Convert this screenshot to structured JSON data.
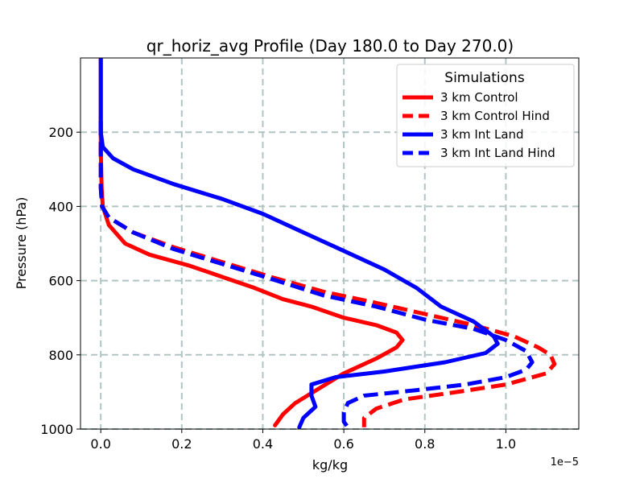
{
  "chart_data": {
    "type": "line",
    "title": "qr_horiz_avg Profile (Day 180.0 to Day 270.0)",
    "xlabel": "kg/kg",
    "ylabel": "Pressure (hPa)",
    "x_offset_text": "1e−5",
    "xlim": [
      -0.05,
      1.18
    ],
    "ylim": [
      1000,
      0
    ],
    "x_ticks": [
      0.0,
      0.2,
      0.4,
      0.6,
      0.8,
      1.0
    ],
    "x_tick_labels": [
      "0.0",
      "0.2",
      "0.4",
      "0.6",
      "0.8",
      "1.0"
    ],
    "y_ticks": [
      200,
      400,
      600,
      800,
      1000
    ],
    "y_tick_labels": [
      "200",
      "400",
      "600",
      "800",
      "1000"
    ],
    "grid": true,
    "legend": {
      "title": "Simulations",
      "placement": "top-right"
    },
    "series": [
      {
        "name": "3 km Control",
        "color": "#ff0000",
        "dashed": false,
        "points": [
          [
            0.0,
            0
          ],
          [
            0.0,
            150
          ],
          [
            0.0,
            250
          ],
          [
            0.002,
            350
          ],
          [
            0.005,
            400
          ],
          [
            0.02,
            450
          ],
          [
            0.06,
            500
          ],
          [
            0.12,
            530
          ],
          [
            0.22,
            560
          ],
          [
            0.3,
            590
          ],
          [
            0.38,
            620
          ],
          [
            0.45,
            650
          ],
          [
            0.52,
            670
          ],
          [
            0.6,
            700
          ],
          [
            0.68,
            720
          ],
          [
            0.73,
            740
          ],
          [
            0.745,
            760
          ],
          [
            0.73,
            780
          ],
          [
            0.68,
            810
          ],
          [
            0.6,
            850
          ],
          [
            0.54,
            890
          ],
          [
            0.48,
            930
          ],
          [
            0.45,
            960
          ],
          [
            0.43,
            990
          ]
        ]
      },
      {
        "name": "3 km Control Hind",
        "color": "#ff0000",
        "dashed": true,
        "points": [
          [
            0.0,
            170
          ],
          [
            0.0,
            250
          ],
          [
            0.0,
            350
          ],
          [
            0.003,
            400
          ],
          [
            0.02,
            430
          ],
          [
            0.08,
            470
          ],
          [
            0.18,
            510
          ],
          [
            0.3,
            550
          ],
          [
            0.42,
            590
          ],
          [
            0.55,
            630
          ],
          [
            0.68,
            660
          ],
          [
            0.8,
            690
          ],
          [
            0.92,
            720
          ],
          [
            1.02,
            750
          ],
          [
            1.08,
            780
          ],
          [
            1.11,
            800
          ],
          [
            1.12,
            825
          ],
          [
            1.1,
            850
          ],
          [
            1.0,
            880
          ],
          [
            0.88,
            900
          ],
          [
            0.75,
            920
          ],
          [
            0.68,
            945
          ],
          [
            0.65,
            970
          ],
          [
            0.65,
            995
          ]
        ]
      },
      {
        "name": "3 km Int Land",
        "color": "#0000ff",
        "dashed": false,
        "points": [
          [
            0.0,
            0
          ],
          [
            0.0,
            100
          ],
          [
            0.0,
            200
          ],
          [
            0.005,
            240
          ],
          [
            0.03,
            270
          ],
          [
            0.08,
            300
          ],
          [
            0.18,
            340
          ],
          [
            0.3,
            380
          ],
          [
            0.4,
            420
          ],
          [
            0.5,
            470
          ],
          [
            0.6,
            520
          ],
          [
            0.7,
            570
          ],
          [
            0.78,
            620
          ],
          [
            0.84,
            670
          ],
          [
            0.92,
            710
          ],
          [
            0.97,
            750
          ],
          [
            0.98,
            770
          ],
          [
            0.95,
            795
          ],
          [
            0.85,
            820
          ],
          [
            0.7,
            845
          ],
          [
            0.58,
            860
          ],
          [
            0.52,
            880
          ],
          [
            0.52,
            910
          ],
          [
            0.53,
            940
          ],
          [
            0.5,
            970
          ],
          [
            0.49,
            995
          ]
        ]
      },
      {
        "name": "3 km Int Land Hind",
        "color": "#0000ff",
        "dashed": true,
        "points": [
          [
            0.0,
            170
          ],
          [
            0.0,
            250
          ],
          [
            0.0,
            350
          ],
          [
            0.003,
            400
          ],
          [
            0.02,
            430
          ],
          [
            0.08,
            470
          ],
          [
            0.18,
            515
          ],
          [
            0.3,
            555
          ],
          [
            0.42,
            595
          ],
          [
            0.55,
            640
          ],
          [
            0.68,
            670
          ],
          [
            0.8,
            705
          ],
          [
            0.92,
            730
          ],
          [
            1.0,
            760
          ],
          [
            1.05,
            790
          ],
          [
            1.065,
            820
          ],
          [
            1.05,
            840
          ],
          [
            1.0,
            860
          ],
          [
            0.9,
            880
          ],
          [
            0.78,
            895
          ],
          [
            0.65,
            910
          ],
          [
            0.61,
            930
          ],
          [
            0.6,
            955
          ],
          [
            0.6,
            980
          ],
          [
            0.61,
            995
          ]
        ]
      }
    ]
  }
}
